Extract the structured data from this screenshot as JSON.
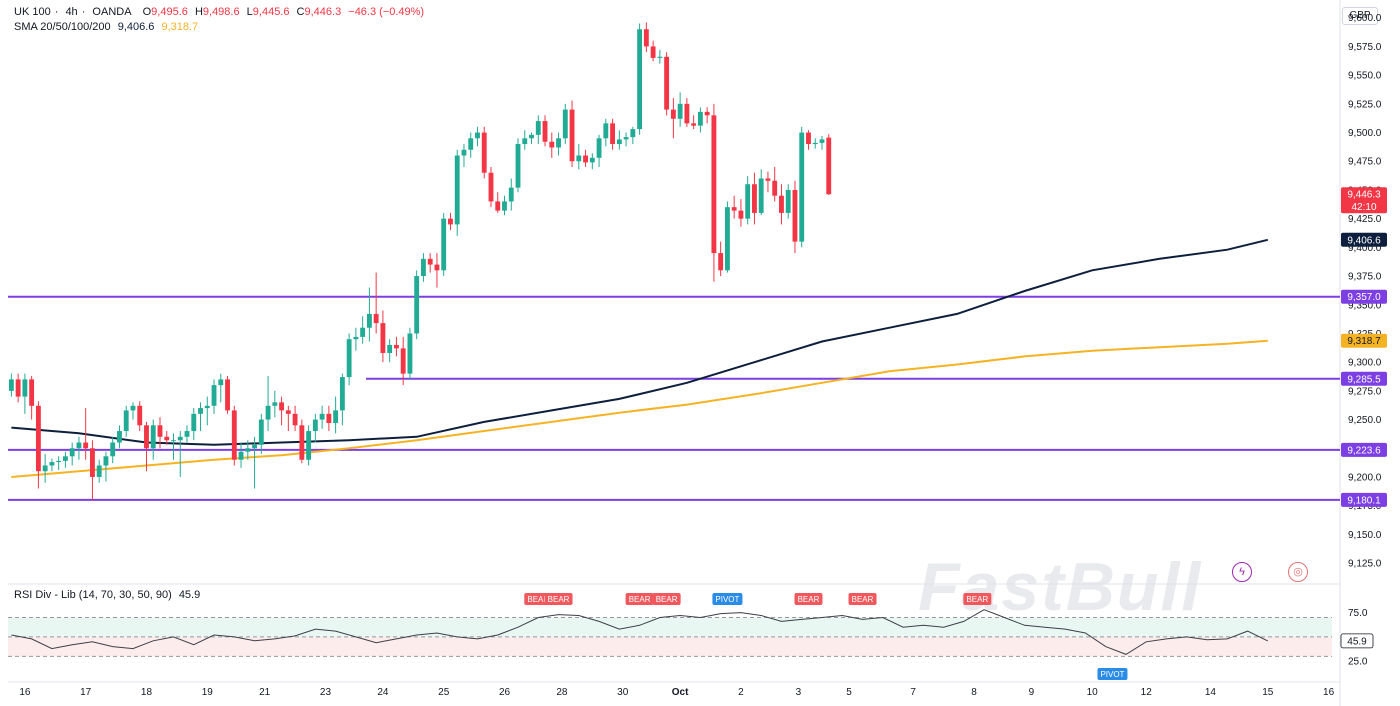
{
  "header": {
    "symbol": "UK 100",
    "interval": "4h",
    "source": "OANDA",
    "open": "9,495.6",
    "high": "9,498.6",
    "low": "9,445.6",
    "close": "9,446.3",
    "change": "−46.3 (−0.49%)",
    "sma_label": "SMA 20/50/100/200",
    "sma_value_1": "9,406.6",
    "sma_value_2": "9,318.7"
  },
  "currency": "GBP",
  "watermark": "FastBull",
  "rsi_header": {
    "label": "RSI Div - Lib (14, 70, 30, 50, 90)",
    "value": "45.9"
  },
  "colors": {
    "up": "#22ab94",
    "down": "#f23645",
    "sma_dark": "#0d1f3c",
    "sma_orange": "#f5b324",
    "level_line": "#7b3fe4",
    "rsi_line": "#3c3f47",
    "bear_label": "#f0585e",
    "pivot_label": "#2b8ce8"
  },
  "chart_data": [
    {
      "type": "candlestick",
      "price_axis_ticks": [
        "9,600.0",
        "9,575.0",
        "9,550.0",
        "9,525.0",
        "9,500.0",
        "9,475.0",
        "9,450.0",
        "9,425.0",
        "9,400.0",
        "9,375.0",
        "9,350.0",
        "9,325.0",
        "9,300.0",
        "9,275.0",
        "9,250.0",
        "9,225.0",
        "9,200.0",
        "9,175.0",
        "9,150.0",
        "9,125.0"
      ],
      "ylim": [
        9112,
        9605
      ],
      "x_tick_labels": [
        "16",
        "17",
        "18",
        "19",
        "21",
        "23",
        "24",
        "25",
        "26",
        "28",
        "30",
        "Oct",
        "2",
        "3",
        "5",
        "7",
        "8",
        "9",
        "10",
        "12",
        "14",
        "15",
        "16"
      ],
      "x_tick_values": [
        2,
        11,
        20,
        29,
        37.5,
        46.5,
        55,
        64,
        73,
        81.5,
        90.5,
        99,
        108,
        116.5,
        124,
        133.5,
        142.5,
        151,
        160,
        168,
        177.5,
        186,
        195
      ],
      "candles": [
        [
          9275,
          9290,
          9270,
          9285
        ],
        [
          9285,
          9290,
          9265,
          9270
        ],
        [
          9270,
          9290,
          9255,
          9285
        ],
        [
          9285,
          9288,
          9250,
          9262
        ],
        [
          9262,
          9266,
          9190,
          9205
        ],
        [
          9205,
          9220,
          9195,
          9210
        ],
        [
          9210,
          9216,
          9205,
          9213
        ],
        [
          9213,
          9218,
          9206,
          9214
        ],
        [
          9214,
          9222,
          9208,
          9218
        ],
        [
          9218,
          9230,
          9210,
          9225
        ],
        [
          9225,
          9235,
          9215,
          9230
        ],
        [
          9230,
          9260,
          9215,
          9225
        ],
        [
          9225,
          9232,
          9180,
          9200
        ],
        [
          9200,
          9215,
          9195,
          9210
        ],
        [
          9210,
          9222,
          9196,
          9218
        ],
        [
          9218,
          9235,
          9212,
          9230
        ],
        [
          9230,
          9245,
          9225,
          9240
        ],
        [
          9240,
          9262,
          9235,
          9258
        ],
        [
          9258,
          9265,
          9250,
          9262
        ],
        [
          9262,
          9266,
          9240,
          9245
        ],
        [
          9245,
          9248,
          9205,
          9225
        ],
        [
          9225,
          9250,
          9215,
          9245
        ],
        [
          9245,
          9252,
          9225,
          9235
        ],
        [
          9235,
          9240,
          9228,
          9232
        ],
        [
          9232,
          9238,
          9215,
          9232
        ],
        [
          9232,
          9240,
          9200,
          9235
        ],
        [
          9235,
          9245,
          9230,
          9240
        ],
        [
          9240,
          9260,
          9232,
          9255
        ],
        [
          9255,
          9265,
          9240,
          9260
        ],
        [
          9260,
          9270,
          9245,
          9262
        ],
        [
          9262,
          9285,
          9255,
          9280
        ],
        [
          9280,
          9290,
          9265,
          9285
        ],
        [
          9285,
          9288,
          9255,
          9258
        ],
        [
          9258,
          9262,
          9210,
          9215
        ],
        [
          9215,
          9230,
          9208,
          9222
        ],
        [
          9222,
          9232,
          9215,
          9225
        ],
        [
          9225,
          9235,
          9190,
          9228
        ],
        [
          9228,
          9255,
          9220,
          9250
        ],
        [
          9250,
          9288,
          9240,
          9262
        ],
        [
          9262,
          9275,
          9252,
          9265
        ],
        [
          9265,
          9270,
          9245,
          9258
        ],
        [
          9258,
          9262,
          9240,
          9255
        ],
        [
          9255,
          9262,
          9240,
          9245
        ],
        [
          9245,
          9250,
          9212,
          9215
        ],
        [
          9215,
          9245,
          9210,
          9240
        ],
        [
          9240,
          9255,
          9230,
          9250
        ],
        [
          9250,
          9262,
          9242,
          9255
        ],
        [
          9255,
          9262,
          9240,
          9247
        ],
        [
          9247,
          9270,
          9238,
          9258
        ],
        [
          9258,
          9290,
          9245,
          9287
        ],
        [
          9287,
          9325,
          9280,
          9320
        ],
        [
          9320,
          9330,
          9310,
          9322
        ],
        [
          9322,
          9340,
          9316,
          9330
        ],
        [
          9330,
          9365,
          9318,
          9342
        ],
        [
          9342,
          9378,
          9325,
          9334
        ],
        [
          9334,
          9345,
          9300,
          9308
        ],
        [
          9308,
          9320,
          9300,
          9315
        ],
        [
          9315,
          9322,
          9305,
          9312
        ],
        [
          9312,
          9322,
          9280,
          9290
        ],
        [
          9290,
          9330,
          9285,
          9325
        ],
        [
          9325,
          9380,
          9320,
          9375
        ],
        [
          9375,
          9395,
          9370,
          9390
        ],
        [
          9390,
          9395,
          9378,
          9385
        ],
        [
          9385,
          9395,
          9365,
          9380
        ],
        [
          9380,
          9430,
          9375,
          9425
        ],
        [
          9425,
          9430,
          9415,
          9420
        ],
        [
          9420,
          9485,
          9410,
          9480
        ],
        [
          9480,
          9490,
          9470,
          9485
        ],
        [
          9485,
          9500,
          9478,
          9495
        ],
        [
          9495,
          9505,
          9488,
          9500
        ],
        [
          9500,
          9505,
          9460,
          9465
        ],
        [
          9465,
          9470,
          9435,
          9440
        ],
        [
          9440,
          9448,
          9430,
          9432
        ],
        [
          9432,
          9445,
          9428,
          9440
        ],
        [
          9440,
          9460,
          9432,
          9452
        ],
        [
          9452,
          9495,
          9448,
          9490
        ],
        [
          9490,
          9502,
          9485,
          9495
        ],
        [
          9495,
          9500,
          9490,
          9498
        ],
        [
          9498,
          9515,
          9490,
          9510
        ],
        [
          9510,
          9515,
          9488,
          9492
        ],
        [
          9492,
          9500,
          9478,
          9487
        ],
        [
          9487,
          9500,
          9480,
          9495
        ],
        [
          9495,
          9525,
          9490,
          9520
        ],
        [
          9520,
          9528,
          9470,
          9475
        ],
        [
          9475,
          9490,
          9468,
          9480
        ],
        [
          9480,
          9485,
          9470,
          9474
        ],
        [
          9474,
          9482,
          9468,
          9478
        ],
        [
          9478,
          9498,
          9470,
          9495
        ],
        [
          9495,
          9512,
          9488,
          9508
        ],
        [
          9508,
          9512,
          9485,
          9490
        ],
        [
          9490,
          9502,
          9485,
          9494
        ],
        [
          9494,
          9500,
          9488,
          9496
        ],
        [
          9496,
          9505,
          9490,
          9503
        ],
        [
          9503,
          9595,
          9498,
          9590
        ],
        [
          9590,
          9596,
          9570,
          9575
        ],
        [
          9575,
          9580,
          9562,
          9565
        ],
        [
          9565,
          9572,
          9560,
          9566
        ],
        [
          9566,
          9570,
          9515,
          9520
        ],
        [
          9520,
          9530,
          9495,
          9512
        ],
        [
          9512,
          9535,
          9505,
          9525
        ],
        [
          9525,
          9530,
          9505,
          9508
        ],
        [
          9508,
          9515,
          9503,
          9506
        ],
        [
          9506,
          9522,
          9500,
          9518
        ],
        [
          9518,
          9522,
          9508,
          9515
        ],
        [
          9515,
          9525,
          9370,
          9395
        ],
        [
          9395,
          9405,
          9375,
          9380
        ],
        [
          9380,
          9440,
          9378,
          9435
        ],
        [
          9435,
          9445,
          9425,
          9432
        ],
        [
          9432,
          9442,
          9418,
          9425
        ],
        [
          9425,
          9462,
          9420,
          9455
        ],
        [
          9455,
          9465,
          9420,
          9430
        ],
        [
          9430,
          9468,
          9428,
          9460
        ],
        [
          9460,
          9466,
          9448,
          9458
        ],
        [
          9458,
          9470,
          9440,
          9445
        ],
        [
          9445,
          9455,
          9420,
          9430
        ],
        [
          9430,
          9455,
          9425,
          9450
        ],
        [
          9450,
          9458,
          9395,
          9405
        ],
        [
          9405,
          9505,
          9400,
          9500
        ],
        [
          9500,
          9502,
          9485,
          9490
        ],
        [
          9490,
          9495,
          9486,
          9491
        ],
        [
          9491,
          9497,
          9485,
          9494
        ],
        [
          9495.6,
          9498.6,
          9445.6,
          9446.3
        ]
      ],
      "sma_dark": [
        [
          0,
          9243
        ],
        [
          10,
          9238
        ],
        [
          20,
          9230
        ],
        [
          30,
          9228
        ],
        [
          40,
          9230
        ],
        [
          50,
          9232
        ],
        [
          60,
          9235
        ],
        [
          70,
          9248
        ],
        [
          80,
          9258
        ],
        [
          90,
          9268
        ],
        [
          100,
          9282
        ],
        [
          110,
          9300
        ],
        [
          120,
          9318
        ],
        [
          130,
          9330
        ],
        [
          140,
          9342
        ],
        [
          150,
          9362
        ],
        [
          160,
          9380
        ],
        [
          170,
          9390
        ],
        [
          180,
          9398
        ],
        [
          186,
          9406.6
        ]
      ],
      "sma_orange": [
        [
          0,
          9200
        ],
        [
          10,
          9205
        ],
        [
          20,
          9210
        ],
        [
          30,
          9215
        ],
        [
          40,
          9219
        ],
        [
          50,
          9225
        ],
        [
          60,
          9232
        ],
        [
          70,
          9240
        ],
        [
          80,
          9248
        ],
        [
          90,
          9256
        ],
        [
          100,
          9263
        ],
        [
          110,
          9272
        ],
        [
          120,
          9282
        ],
        [
          130,
          9292
        ],
        [
          140,
          9298
        ],
        [
          150,
          9305
        ],
        [
          160,
          9310
        ],
        [
          170,
          9313
        ],
        [
          180,
          9316
        ],
        [
          186,
          9318.7
        ]
      ],
      "levels": [
        {
          "label": "9,357.0",
          "value": 9357.0,
          "x_start": 0
        },
        {
          "label": "9,285.5",
          "value": 9285.5,
          "x_start": 53
        },
        {
          "label": "9,223.6",
          "value": 9223.6,
          "x_start": 0
        },
        {
          "label": "9,180.1",
          "value": 9180.1,
          "x_start": 0
        }
      ],
      "price_tags": [
        {
          "label": "9,446.3",
          "sub": "42:10",
          "value": 9446.3,
          "kind": "down"
        },
        {
          "label": "9,406.6",
          "value": 9406.6,
          "kind": "sma_dark"
        },
        {
          "label": "9,357.0",
          "value": 9357.0,
          "kind": "level"
        },
        {
          "label": "9,318.7",
          "value": 9318.7,
          "kind": "sma_orange"
        },
        {
          "label": "9,285.5",
          "value": 9285.5,
          "kind": "level"
        },
        {
          "label": "9,223.6",
          "value": 9223.6,
          "kind": "level"
        },
        {
          "label": "9,180.1",
          "value": 9180.1,
          "kind": "level"
        }
      ]
    },
    {
      "type": "line",
      "title": "RSI Div - Lib (14, 70, 30, 50, 90)",
      "ylim": [
        18,
        88
      ],
      "y_ticks": [
        "75.0",
        "50.0",
        "25.0"
      ],
      "y_tick_values": [
        75,
        50,
        25
      ],
      "dashed_levels": [
        70,
        50,
        30
      ],
      "current": "45.9",
      "rsi": [
        [
          0,
          52
        ],
        [
          3,
          48
        ],
        [
          6,
          38
        ],
        [
          9,
          42
        ],
        [
          12,
          45
        ],
        [
          15,
          40
        ],
        [
          18,
          38
        ],
        [
          21,
          46
        ],
        [
          24,
          50
        ],
        [
          27,
          42
        ],
        [
          30,
          52
        ],
        [
          33,
          50
        ],
        [
          36,
          46
        ],
        [
          39,
          48
        ],
        [
          42,
          51
        ],
        [
          45,
          58
        ],
        [
          48,
          56
        ],
        [
          51,
          50
        ],
        [
          54,
          44
        ],
        [
          57,
          48
        ],
        [
          60,
          52
        ],
        [
          63,
          54
        ],
        [
          66,
          50
        ],
        [
          69,
          48
        ],
        [
          72,
          52
        ],
        [
          75,
          60
        ],
        [
          78,
          70
        ],
        [
          81,
          73
        ],
        [
          84,
          72
        ],
        [
          87,
          66
        ],
        [
          90,
          58
        ],
        [
          93,
          62
        ],
        [
          96,
          70
        ],
        [
          99,
          72
        ],
        [
          102,
          70
        ],
        [
          105,
          74
        ],
        [
          108,
          75
        ],
        [
          111,
          72
        ],
        [
          114,
          66
        ],
        [
          117,
          68
        ],
        [
          120,
          70
        ],
        [
          123,
          72
        ],
        [
          126,
          68
        ],
        [
          129,
          70
        ],
        [
          132,
          60
        ],
        [
          135,
          62
        ],
        [
          138,
          60
        ],
        [
          141,
          66
        ],
        [
          144,
          78
        ],
        [
          147,
          70
        ],
        [
          150,
          62
        ],
        [
          153,
          60
        ],
        [
          156,
          58
        ],
        [
          159,
          54
        ],
        [
          162,
          40
        ],
        [
          165,
          32
        ],
        [
          168,
          45
        ],
        [
          171,
          48
        ],
        [
          174,
          50
        ],
        [
          177,
          47
        ],
        [
          180,
          48
        ],
        [
          183,
          56
        ],
        [
          186,
          45.9
        ]
      ],
      "labels": [
        {
          "text": "BEAR",
          "x": 78,
          "kind": "bear"
        },
        {
          "text": "BEAR",
          "x": 81,
          "kind": "bear"
        },
        {
          "text": "BEAR",
          "x": 93,
          "kind": "bear"
        },
        {
          "text": "BEAR",
          "x": 97,
          "kind": "bear"
        },
        {
          "text": "PIVOT",
          "x": 106,
          "kind": "pivot"
        },
        {
          "text": "BEAR",
          "x": 118,
          "kind": "bear"
        },
        {
          "text": "BEAR",
          "x": 126,
          "kind": "bear"
        },
        {
          "text": "BEAR",
          "x": 143,
          "kind": "bear"
        },
        {
          "text": "PIVOT",
          "x": 163,
          "kind": "pivot"
        }
      ]
    }
  ]
}
